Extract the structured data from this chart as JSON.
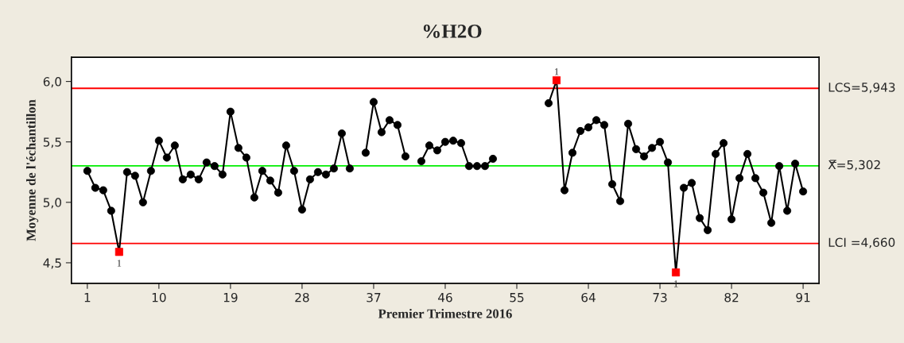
{
  "chart_data": {
    "type": "line",
    "title": "%H2O",
    "xlabel": "Premier Trimestre 2016",
    "ylabel": "Moyenne de l'échantillon",
    "x": [
      1,
      2,
      3,
      4,
      5,
      6,
      7,
      8,
      9,
      10,
      11,
      12,
      13,
      14,
      15,
      16,
      17,
      18,
      19,
      20,
      21,
      22,
      23,
      24,
      25,
      26,
      27,
      28,
      29,
      30,
      31,
      32,
      33,
      34,
      35,
      36,
      37,
      38,
      39,
      40,
      41,
      42,
      43,
      44,
      45,
      46,
      47,
      48,
      49,
      50,
      51,
      52,
      53,
      54,
      55,
      56,
      57,
      58,
      59,
      60,
      61,
      62,
      63,
      64,
      65,
      66,
      67,
      68,
      69,
      70,
      71,
      72,
      73,
      74,
      75,
      76,
      77,
      78,
      79,
      80,
      81,
      82,
      83,
      84,
      85,
      86,
      87,
      88,
      89,
      90,
      91
    ],
    "series": [
      {
        "color": "#000000",
        "marker": "none",
        "values": [
          5.26,
          5.12,
          5.1,
          4.93,
          4.59,
          5.25,
          5.22,
          5.0,
          5.26,
          5.51,
          5.37,
          5.47,
          5.19,
          5.23,
          5.19,
          5.33,
          5.3,
          5.23,
          5.75,
          5.45,
          5.37,
          5.04,
          5.26,
          5.18,
          5.08,
          5.47,
          5.26,
          4.94,
          5.19,
          5.25,
          5.23,
          5.28,
          5.57,
          5.28,
          null,
          5.41,
          5.83,
          5.58,
          5.68,
          5.64,
          5.38,
          null,
          5.34,
          5.47,
          5.43,
          5.5,
          5.51,
          5.49,
          5.3,
          5.3,
          5.3,
          5.36,
          null,
          null,
          null,
          null,
          null,
          null,
          5.82,
          6.01,
          5.1,
          5.41,
          5.59,
          5.62,
          5.68,
          5.64,
          5.15,
          5.01,
          5.65,
          5.44,
          5.38,
          5.45,
          5.5,
          5.33,
          4.42,
          5.12,
          5.16,
          4.87,
          4.77,
          5.4,
          5.49,
          4.86,
          5.2,
          5.4,
          5.2,
          5.08,
          4.83,
          5.3,
          4.93,
          5.32,
          5.09
        ]
      },
      {
        "type": "scatter",
        "color": "#000000",
        "marker": "circle",
        "values": [
          5.26,
          5.12,
          5.1,
          4.93,
          null,
          5.25,
          5.22,
          5.0,
          5.26,
          5.51,
          5.37,
          5.47,
          5.19,
          5.23,
          5.19,
          5.33,
          5.3,
          5.23,
          5.75,
          5.45,
          5.37,
          5.04,
          5.26,
          5.18,
          5.08,
          5.47,
          5.26,
          4.94,
          5.19,
          5.25,
          5.23,
          5.28,
          5.57,
          5.28,
          null,
          5.41,
          5.83,
          5.58,
          5.68,
          5.64,
          5.38,
          null,
          5.34,
          5.47,
          5.43,
          5.5,
          5.51,
          5.49,
          5.3,
          5.3,
          5.3,
          5.36,
          null,
          null,
          null,
          null,
          null,
          null,
          5.82,
          null,
          5.1,
          5.41,
          5.59,
          5.62,
          5.68,
          5.64,
          5.15,
          5.01,
          5.65,
          5.44,
          5.38,
          5.45,
          5.5,
          5.33,
          null,
          5.12,
          5.16,
          4.87,
          4.77,
          5.4,
          5.49,
          4.86,
          5.2,
          5.4,
          5.2,
          5.08,
          4.83,
          5.3,
          4.93,
          5.32,
          5.09
        ]
      },
      {
        "type": "scatter",
        "color": "#ff0000",
        "marker": "square",
        "values": [
          null,
          null,
          null,
          null,
          4.59,
          null,
          null,
          null,
          null,
          null,
          null,
          null,
          null,
          null,
          null,
          null,
          null,
          null,
          null,
          null,
          null,
          null,
          null,
          null,
          null,
          null,
          null,
          null,
          null,
          null,
          null,
          null,
          null,
          null,
          null,
          null,
          null,
          null,
          null,
          null,
          null,
          null,
          null,
          null,
          null,
          null,
          null,
          null,
          null,
          null,
          null,
          null,
          null,
          null,
          null,
          null,
          null,
          null,
          null,
          6.01,
          null,
          null,
          null,
          null,
          null,
          null,
          null,
          null,
          null,
          null,
          null,
          null,
          null,
          null,
          4.42,
          null,
          null,
          null,
          null,
          null,
          null,
          null,
          null,
          null,
          null,
          null,
          null,
          null,
          null,
          null,
          null
        ]
      }
    ],
    "ref_lines": [
      {
        "axis": "y",
        "value": 5.943,
        "label": "LCS=5,943",
        "color": "#ff0000",
        "line_style": "solid"
      },
      {
        "axis": "y",
        "value": 5.302,
        "label": "X̿=5,302",
        "color": "#00ee00",
        "line_style": "solid"
      },
      {
        "axis": "y",
        "value": 4.66,
        "label": "LCI =4,660",
        "color": "#ff0000",
        "line_style": "solid"
      }
    ],
    "annotations": [
      {
        "text": "1",
        "x": 5,
        "y": 4.59
      },
      {
        "text": "1",
        "x": 60,
        "y": 6.01
      },
      {
        "text": "1",
        "x": 75,
        "y": 4.42
      }
    ],
    "xlim": [
      -1,
      93
    ],
    "ylim": [
      4.33,
      6.2
    ],
    "xticks": [
      1,
      10,
      19,
      28,
      37,
      46,
      55,
      64,
      73,
      82,
      91
    ],
    "yticks": [
      {
        "value": 4.5,
        "label": "4,5"
      },
      {
        "value": 5.0,
        "label": "5,0"
      },
      {
        "value": 5.5,
        "label": "5,5"
      },
      {
        "value": 6.0,
        "label": "6,0"
      }
    ],
    "grid": false,
    "legend": false
  }
}
